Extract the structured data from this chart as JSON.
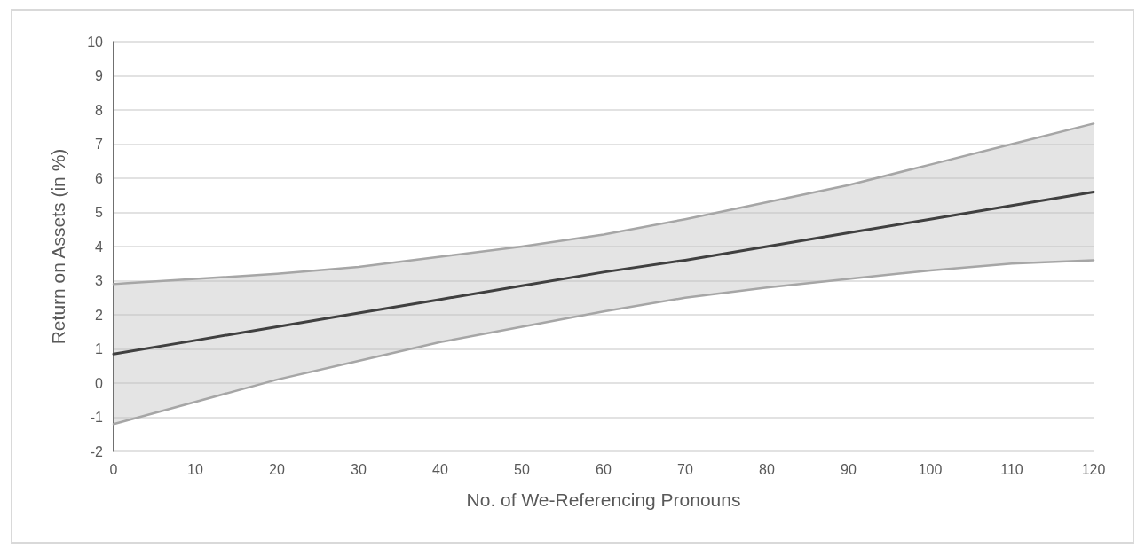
{
  "chart_data": {
    "type": "line",
    "xlabel": "No. of We-Referencing Pronouns",
    "ylabel": "Return on Assets (in %)",
    "xlim": [
      0,
      120
    ],
    "xticks": [
      0,
      10,
      20,
      30,
      40,
      50,
      60,
      70,
      80,
      90,
      100,
      110,
      120
    ],
    "ylim": [
      -2,
      10
    ],
    "yticks": [
      -2,
      -1,
      0,
      1,
      2,
      3,
      4,
      5,
      6,
      7,
      8,
      9,
      10
    ],
    "grid": "y",
    "marker": "none",
    "line_style": "solid",
    "series": [
      {
        "color": "#404040",
        "x": [
          0,
          10,
          20,
          30,
          40,
          50,
          60,
          70,
          80,
          90,
          100,
          110,
          120
        ],
        "values": [
          0.85,
          1.25,
          1.65,
          2.05,
          2.45,
          2.85,
          3.25,
          3.6,
          4.0,
          4.4,
          4.8,
          5.2,
          5.6
        ],
        "lower": [
          -1.2,
          -0.55,
          0.1,
          0.65,
          1.2,
          1.65,
          2.1,
          2.5,
          2.8,
          3.05,
          3.3,
          3.5,
          3.6
        ],
        "upper": [
          2.9,
          3.05,
          3.2,
          3.4,
          3.7,
          4.0,
          4.35,
          4.8,
          5.3,
          5.8,
          6.4,
          7.0,
          7.6
        ]
      },
      {
        "color": "#a6a6a6",
        "x": [
          0,
          10,
          20,
          30,
          40,
          50,
          60,
          70,
          80,
          90,
          100,
          110,
          120
        ],
        "values": [
          2.9,
          3.05,
          3.2,
          3.4,
          3.7,
          4.0,
          4.35,
          4.8,
          5.3,
          5.8,
          6.4,
          7.0,
          7.6
        ]
      },
      {
        "color": "#a6a6a6",
        "x": [
          0,
          10,
          20,
          30,
          40,
          50,
          60,
          70,
          80,
          90,
          100,
          110,
          120
        ],
        "values": [
          -1.2,
          -0.55,
          0.1,
          0.65,
          1.2,
          1.65,
          2.1,
          2.5,
          2.8,
          3.05,
          3.3,
          3.5,
          3.6
        ]
      }
    ]
  }
}
